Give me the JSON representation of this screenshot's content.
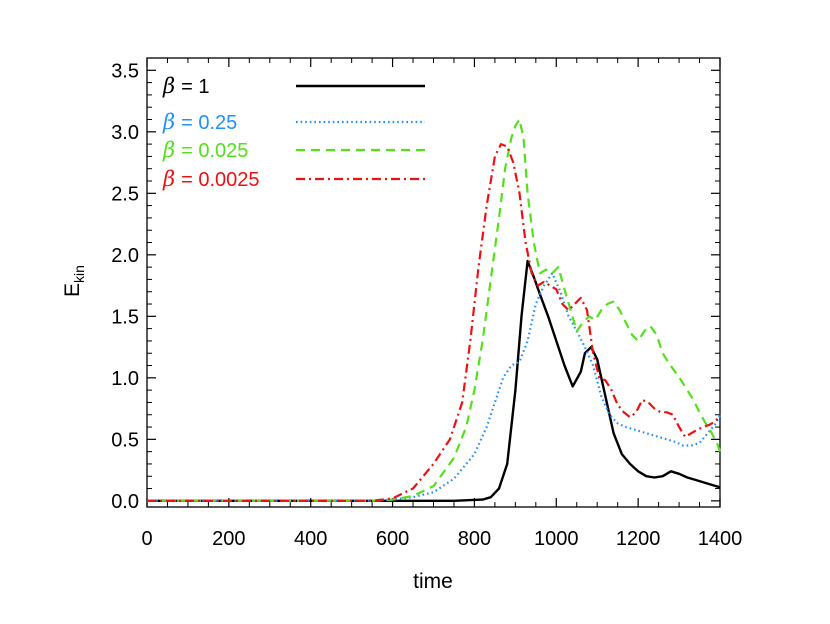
{
  "chart_data": {
    "type": "line",
    "xlabel": "time",
    "ylabel": "E",
    "ylabel_sub": "kin",
    "xlim": [
      0,
      1400
    ],
    "ylim": [
      -0.05,
      3.6
    ],
    "x_ticks": [
      0,
      200,
      400,
      600,
      800,
      1000,
      1200,
      1400
    ],
    "x_tick_labels": [
      "0",
      "200",
      "400",
      "600",
      "800",
      "1000",
      "1200",
      "1400"
    ],
    "y_ticks": [
      0.0,
      0.5,
      1.0,
      1.5,
      2.0,
      2.5,
      3.0,
      3.5
    ],
    "y_tick_labels": [
      "0.0",
      "0.5",
      "1.0",
      "1.5",
      "2.0",
      "2.5",
      "3.0",
      "3.5"
    ],
    "grid": false,
    "legend_placement": "top-left",
    "series": [
      {
        "name": "β = 1",
        "symbol": "β",
        "value_text": "= 1",
        "color": "#000000",
        "dash": "solid",
        "x": [
          0,
          750,
          820,
          840,
          860,
          880,
          900,
          915,
          930,
          945,
          960,
          980,
          1000,
          1020,
          1040,
          1060,
          1070,
          1085,
          1100,
          1120,
          1140,
          1160,
          1180,
          1200,
          1220,
          1240,
          1260,
          1280,
          1300,
          1320,
          1340,
          1360,
          1380,
          1400
        ],
        "y": [
          0,
          0,
          0.01,
          0.03,
          0.1,
          0.3,
          0.9,
          1.5,
          1.95,
          1.82,
          1.68,
          1.5,
          1.3,
          1.1,
          0.93,
          1.05,
          1.2,
          1.25,
          1.15,
          0.85,
          0.55,
          0.38,
          0.3,
          0.24,
          0.2,
          0.19,
          0.2,
          0.24,
          0.22,
          0.19,
          0.17,
          0.15,
          0.13,
          0.11
        ]
      },
      {
        "name": "β = 0.25",
        "symbol": "β",
        "value_text": "= 0.25",
        "color": "#1e90ff",
        "dash": "dotted",
        "x": [
          0,
          550,
          600,
          650,
          700,
          750,
          800,
          830,
          850,
          870,
          890,
          910,
          930,
          950,
          970,
          990,
          1010,
          1030,
          1050,
          1070,
          1090,
          1110,
          1130,
          1150,
          1170,
          1190,
          1210,
          1230,
          1250,
          1270,
          1290,
          1310,
          1330,
          1350,
          1370,
          1390,
          1400
        ],
        "y": [
          0,
          0,
          0.01,
          0.03,
          0.07,
          0.18,
          0.38,
          0.6,
          0.8,
          1.0,
          1.1,
          1.13,
          1.3,
          1.6,
          1.75,
          1.85,
          1.7,
          1.5,
          1.38,
          1.25,
          1.1,
          0.85,
          0.7,
          0.63,
          0.6,
          0.58,
          0.56,
          0.54,
          0.52,
          0.5,
          0.48,
          0.45,
          0.45,
          0.47,
          0.55,
          0.63,
          0.7
        ]
      },
      {
        "name": "β = 0.025",
        "symbol": "β",
        "value_text": "= 0.025",
        "color": "#55e01c",
        "dash": "dashed",
        "x": [
          0,
          550,
          600,
          650,
          700,
          750,
          780,
          800,
          820,
          840,
          860,
          875,
          890,
          900,
          910,
          920,
          930,
          945,
          960,
          975,
          990,
          1005,
          1020,
          1035,
          1050,
          1065,
          1080,
          1095,
          1110,
          1125,
          1140,
          1155,
          1170,
          1185,
          1200,
          1215,
          1230,
          1245,
          1260,
          1275,
          1290,
          1305,
          1320,
          1335,
          1350,
          1365,
          1380,
          1395,
          1400
        ],
        "y": [
          0,
          0,
          0.01,
          0.04,
          0.12,
          0.35,
          0.6,
          0.9,
          1.3,
          1.8,
          2.3,
          2.7,
          2.95,
          3.05,
          3.1,
          2.95,
          2.5,
          2.1,
          1.85,
          1.88,
          1.85,
          1.9,
          1.72,
          1.55,
          1.38,
          1.45,
          1.5,
          1.47,
          1.55,
          1.6,
          1.62,
          1.55,
          1.45,
          1.35,
          1.3,
          1.38,
          1.42,
          1.35,
          1.2,
          1.12,
          1.05,
          0.98,
          0.9,
          0.82,
          0.72,
          0.63,
          0.55,
          0.45,
          0.4
        ]
      },
      {
        "name": "β = 0.0025",
        "symbol": "β",
        "value_text": "= 0.0025",
        "color": "#ee1111",
        "dash": "dashdot",
        "x": [
          0,
          550,
          600,
          650,
          700,
          740,
          770,
          790,
          810,
          830,
          850,
          865,
          880,
          895,
          910,
          925,
          940,
          955,
          970,
          985,
          1000,
          1015,
          1030,
          1045,
          1060,
          1075,
          1090,
          1105,
          1120,
          1135,
          1150,
          1165,
          1180,
          1195,
          1210,
          1225,
          1240,
          1255,
          1270,
          1285,
          1300,
          1315,
          1330,
          1345,
          1360,
          1375,
          1390,
          1400
        ],
        "y": [
          0,
          0,
          0.02,
          0.1,
          0.3,
          0.5,
          0.8,
          1.3,
          1.9,
          2.4,
          2.8,
          2.9,
          2.88,
          2.75,
          2.5,
          2.1,
          1.85,
          1.75,
          1.78,
          1.75,
          1.72,
          1.6,
          1.55,
          1.6,
          1.65,
          1.55,
          1.2,
          1.0,
          0.98,
          0.9,
          0.78,
          0.72,
          0.68,
          0.72,
          0.82,
          0.8,
          0.75,
          0.72,
          0.72,
          0.7,
          0.6,
          0.52,
          0.55,
          0.58,
          0.6,
          0.62,
          0.65,
          0.7
        ]
      }
    ]
  }
}
